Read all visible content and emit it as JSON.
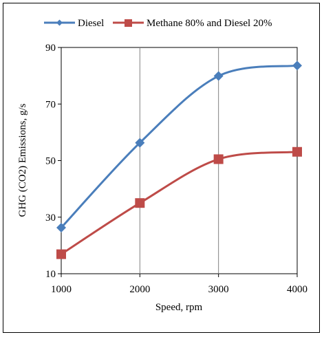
{
  "chart_data": {
    "type": "line",
    "title": "",
    "xlabel": "Speed, rpm",
    "ylabel": "GHG (CO2) Emissions, g/s",
    "x": [
      1000,
      2000,
      3000,
      4000
    ],
    "x_ticks": [
      "1000",
      "2000",
      "3000",
      "4000"
    ],
    "xlim": [
      1000,
      4000
    ],
    "ylim": [
      10,
      90
    ],
    "y_ticks": [
      "10",
      "30",
      "50",
      "70",
      "90"
    ],
    "grid": "vertical",
    "legend_position": "top",
    "series": [
      {
        "name": "Diesel",
        "values": [
          26.3,
          56.3,
          79.9,
          83.6
        ],
        "color": "#4a7ebb",
        "marker": "diamond"
      },
      {
        "name": "Methane 80% and Diesel 20%",
        "values": [
          16.9,
          35.0,
          50.5,
          53.1
        ],
        "color": "#be4b48",
        "marker": "square"
      }
    ]
  }
}
